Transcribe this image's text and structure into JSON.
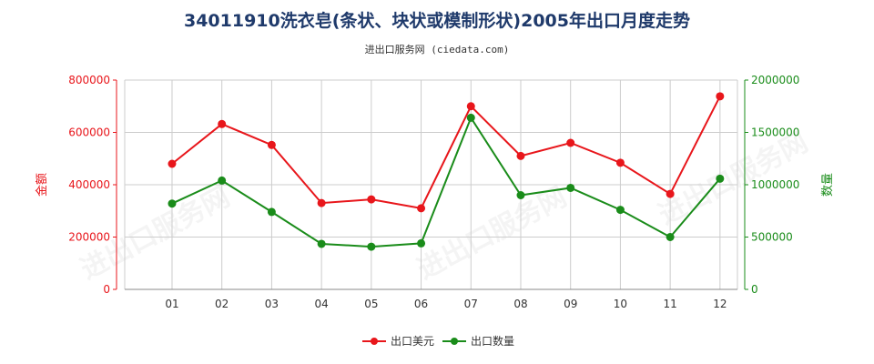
{
  "title": "34011910洗衣皂(条状、块状或模制形状)2005年出口月度走势",
  "subtitle": "进出口服务网 (ciedata.com)",
  "watermark": "进出口服务网",
  "colors": {
    "value_series": "#e8161b",
    "quantity_series": "#1a8c1a",
    "grid": "#cccccc",
    "axis": "#333333"
  },
  "chart_data": {
    "type": "line",
    "categories": [
      "01",
      "02",
      "03",
      "04",
      "05",
      "06",
      "07",
      "08",
      "09",
      "10",
      "11",
      "12"
    ],
    "y_left": {
      "label": "金额",
      "ylim": [
        0,
        800000
      ],
      "ticks": [
        "0",
        "200000",
        "400000",
        "600000",
        "800000"
      ],
      "tick_values": [
        0,
        200000,
        400000,
        600000,
        800000
      ]
    },
    "y_right": {
      "label": "数量",
      "ylim": [
        0,
        2000000
      ],
      "ticks": [
        "0",
        "500000",
        "1000000",
        "1500000",
        "2000000"
      ],
      "tick_values": [
        0,
        500000,
        1000000,
        1500000,
        2000000
      ]
    },
    "series": [
      {
        "name": "出口美元",
        "axis": "left",
        "values": [
          480000,
          632000,
          552000,
          330000,
          344000,
          310000,
          700000,
          510000,
          560000,
          484000,
          365000,
          738000
        ]
      },
      {
        "name": "出口数量",
        "axis": "right",
        "values": [
          820000,
          1040000,
          740000,
          435000,
          408000,
          440000,
          1640000,
          900000,
          970000,
          760000,
          500000,
          1058000
        ]
      }
    ],
    "grid": true,
    "legend_position": "bottom-center"
  }
}
